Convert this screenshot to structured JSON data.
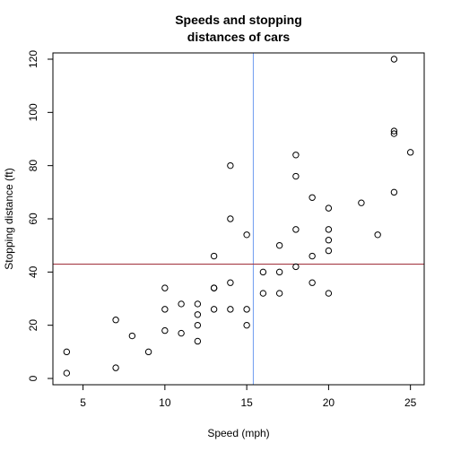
{
  "chart_data": {
    "type": "scatter",
    "title": [
      "Speeds and stopping",
      "distances of cars"
    ],
    "xlabel": "Speed (mph)",
    "ylabel": "Stopping distance (ft)",
    "xlim": [
      3.16,
      25.84
    ],
    "ylim": [
      -2.36,
      122.36
    ],
    "x_ticks": [
      5,
      10,
      15,
      20,
      25
    ],
    "y_ticks": [
      0,
      20,
      40,
      60,
      80,
      100,
      120
    ],
    "grid": false,
    "reference_lines": [
      {
        "orientation": "vertical",
        "value": 15.4,
        "color": "#6f9cf0"
      },
      {
        "orientation": "horizontal",
        "value": 42.98,
        "color": "#a0303a"
      }
    ],
    "points": [
      [
        4,
        2
      ],
      [
        4,
        10
      ],
      [
        7,
        4
      ],
      [
        7,
        22
      ],
      [
        8,
        16
      ],
      [
        9,
        10
      ],
      [
        10,
        18
      ],
      [
        10,
        26
      ],
      [
        10,
        34
      ],
      [
        11,
        17
      ],
      [
        11,
        28
      ],
      [
        12,
        14
      ],
      [
        12,
        20
      ],
      [
        12,
        24
      ],
      [
        12,
        28
      ],
      [
        13,
        26
      ],
      [
        13,
        34
      ],
      [
        13,
        34
      ],
      [
        13,
        46
      ],
      [
        14,
        26
      ],
      [
        14,
        36
      ],
      [
        14,
        60
      ],
      [
        14,
        80
      ],
      [
        15,
        20
      ],
      [
        15,
        26
      ],
      [
        15,
        54
      ],
      [
        16,
        32
      ],
      [
        16,
        40
      ],
      [
        17,
        32
      ],
      [
        17,
        40
      ],
      [
        17,
        50
      ],
      [
        18,
        42
      ],
      [
        18,
        56
      ],
      [
        18,
        76
      ],
      [
        18,
        84
      ],
      [
        19,
        36
      ],
      [
        19,
        46
      ],
      [
        19,
        68
      ],
      [
        20,
        32
      ],
      [
        20,
        48
      ],
      [
        20,
        52
      ],
      [
        20,
        56
      ],
      [
        20,
        64
      ],
      [
        22,
        66
      ],
      [
        23,
        54
      ],
      [
        24,
        70
      ],
      [
        24,
        92
      ],
      [
        24,
        93
      ],
      [
        24,
        120
      ],
      [
        25,
        85
      ]
    ]
  }
}
